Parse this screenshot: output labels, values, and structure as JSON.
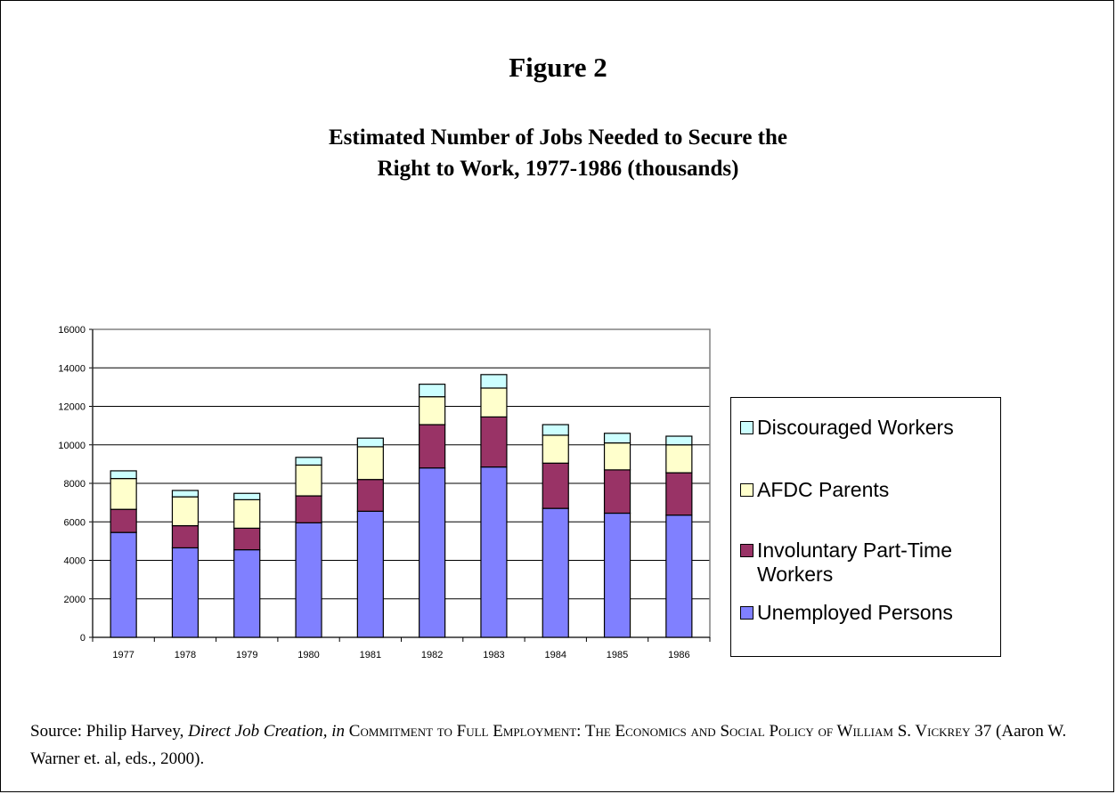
{
  "figure_label": "Figure 2",
  "chart_data": {
    "type": "bar",
    "stacked": true,
    "title_lines": [
      "Estimated Number of Jobs Needed to Secure the",
      "Right to Work, 1977-1986 (thousands)"
    ],
    "categories": [
      "1977",
      "1978",
      "1979",
      "1980",
      "1981",
      "1982",
      "1983",
      "1984",
      "1985",
      "1986"
    ],
    "series": [
      {
        "name": "Unemployed Persons",
        "color": "#8080ff",
        "values": [
          5450,
          4650,
          4550,
          5950,
          6550,
          8800,
          8850,
          6700,
          6450,
          6350
        ]
      },
      {
        "name": "Involuntary Part-Time Workers",
        "color": "#993366",
        "values": [
          1200,
          1150,
          1120,
          1400,
          1650,
          2250,
          2600,
          2350,
          2250,
          2200
        ]
      },
      {
        "name": "AFDC Parents",
        "color": "#ffffcc",
        "values": [
          1600,
          1500,
          1480,
          1600,
          1700,
          1450,
          1500,
          1450,
          1400,
          1450
        ]
      },
      {
        "name": "Discouraged Workers",
        "color": "#ccffff",
        "values": [
          400,
          330,
          330,
          400,
          450,
          650,
          700,
          550,
          500,
          450
        ]
      }
    ],
    "yticks": [
      "0",
      "2000",
      "4000",
      "6000",
      "8000",
      "10000",
      "12000",
      "14000",
      "16000"
    ],
    "ylim": [
      0,
      16000
    ],
    "grid": true,
    "legend_position": "right"
  },
  "source": {
    "prefix": "Source:  Philip Harvey, ",
    "italic": "Direct Job Creation, in",
    "book": "Commitment to Full Employment: The Economics and Social Policy of William S. Vickrey",
    "suffix": " 37 (Aaron W. Warner et. al, eds., 2000)."
  }
}
